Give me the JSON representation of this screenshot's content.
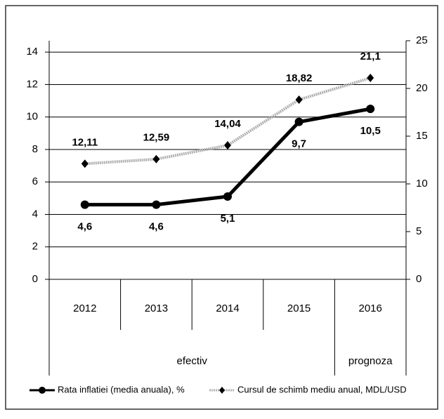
{
  "chart_data": {
    "type": "line",
    "categories": [
      "2012",
      "2013",
      "2014",
      "2015",
      "2016"
    ],
    "groups": [
      "efectiv",
      "prognoza"
    ],
    "series": [
      {
        "name": "Rata inflatiei (media anuala), %",
        "color": "#000000",
        "values": [
          4.6,
          4.6,
          5.1,
          9.7,
          10.5
        ],
        "value_labels": [
          "4,6",
          "4,6",
          "5,1",
          "9,7",
          "10,5"
        ]
      },
      {
        "name": "Cursul de schimb mediu anual, MDL/USD",
        "color": "#b0b0b0",
        "axis": "y2",
        "values": [
          12.11,
          12.59,
          14.04,
          18.82,
          21.1
        ],
        "value_labels": [
          "12,11",
          "12,59",
          "14,04",
          "18,82",
          "21,1"
        ]
      }
    ],
    "ylim": [
      0,
      14.7
    ],
    "yticks": [
      0,
      2,
      4,
      6,
      8,
      10,
      12,
      14
    ],
    "y2lim": [
      0,
      25
    ],
    "y2ticks": [
      0,
      5,
      10,
      15,
      20,
      25
    ],
    "grid": true
  }
}
